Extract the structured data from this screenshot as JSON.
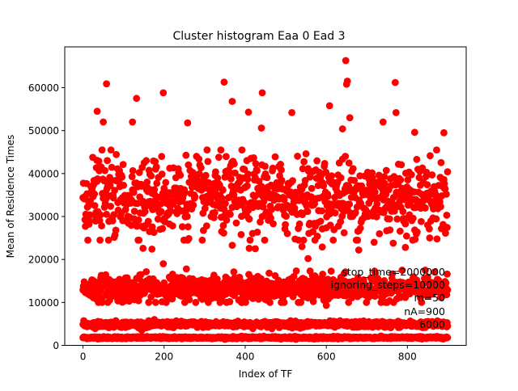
{
  "chart_data": {
    "type": "scatter",
    "title": "Cluster histogram Eaa 0 Ead 3",
    "xlabel": "Index of TF",
    "ylabel": "Mean of Residence Times",
    "xlim": [
      -45,
      945
    ],
    "ylim": [
      0,
      69500
    ],
    "x_ticks": [
      0,
      200,
      400,
      600,
      800
    ],
    "y_ticks": [
      0,
      10000,
      20000,
      30000,
      40000,
      50000,
      60000
    ],
    "x_tick_labels": [
      "0",
      "200",
      "400",
      "600",
      "800"
    ],
    "y_tick_labels": [
      "0",
      "10000",
      "20000",
      "30000",
      "40000",
      "50000",
      "60000"
    ],
    "grid": false,
    "legend": "none",
    "marker_color": "#ff0000",
    "n_points": 900,
    "bands": [
      {
        "center": 1800,
        "spread": 120
      },
      {
        "center": 4900,
        "spread": 350
      },
      {
        "center": 13200,
        "spread": 1500
      },
      {
        "center": 34500,
        "spread": 4500
      }
    ],
    "outliers": [
      {
        "x": 648,
        "y": 66300
      },
      {
        "x": 652,
        "y": 61500
      },
      {
        "x": 58,
        "y": 60900
      },
      {
        "x": 348,
        "y": 61300
      },
      {
        "x": 770,
        "y": 61200
      },
      {
        "x": 650,
        "y": 60800
      },
      {
        "x": 198,
        "y": 58800
      },
      {
        "x": 132,
        "y": 57500
      },
      {
        "x": 442,
        "y": 58800
      },
      {
        "x": 368,
        "y": 56800
      },
      {
        "x": 35,
        "y": 54500
      },
      {
        "x": 515,
        "y": 54200
      },
      {
        "x": 608,
        "y": 55800
      },
      {
        "x": 772,
        "y": 54200
      },
      {
        "x": 50,
        "y": 52000
      },
      {
        "x": 258,
        "y": 51800
      },
      {
        "x": 658,
        "y": 53000
      },
      {
        "x": 740,
        "y": 52000
      },
      {
        "x": 890,
        "y": 49500
      },
      {
        "x": 640,
        "y": 50400
      },
      {
        "x": 408,
        "y": 54300
      },
      {
        "x": 440,
        "y": 50600
      },
      {
        "x": 122,
        "y": 52000
      },
      {
        "x": 818,
        "y": 49600
      },
      {
        "x": 368,
        "y": 23300
      },
      {
        "x": 410,
        "y": 22600
      },
      {
        "x": 425,
        "y": 22500
      },
      {
        "x": 540,
        "y": 23000
      },
      {
        "x": 555,
        "y": 20200
      },
      {
        "x": 560,
        "y": 17300
      },
      {
        "x": 590,
        "y": 22900
      },
      {
        "x": 148,
        "y": 22600
      },
      {
        "x": 680,
        "y": 22200
      },
      {
        "x": 795,
        "y": 22800
      },
      {
        "x": 198,
        "y": 19000
      },
      {
        "x": 255,
        "y": 17800
      },
      {
        "x": 765,
        "y": 23800
      },
      {
        "x": 600,
        "y": 9300
      },
      {
        "x": 170,
        "y": 22400
      },
      {
        "x": 718,
        "y": 24000
      }
    ],
    "annotations": [
      "stop_time=2000000",
      "ignoring_steps=10000",
      "m=50",
      "nA=900",
      "6000"
    ]
  }
}
